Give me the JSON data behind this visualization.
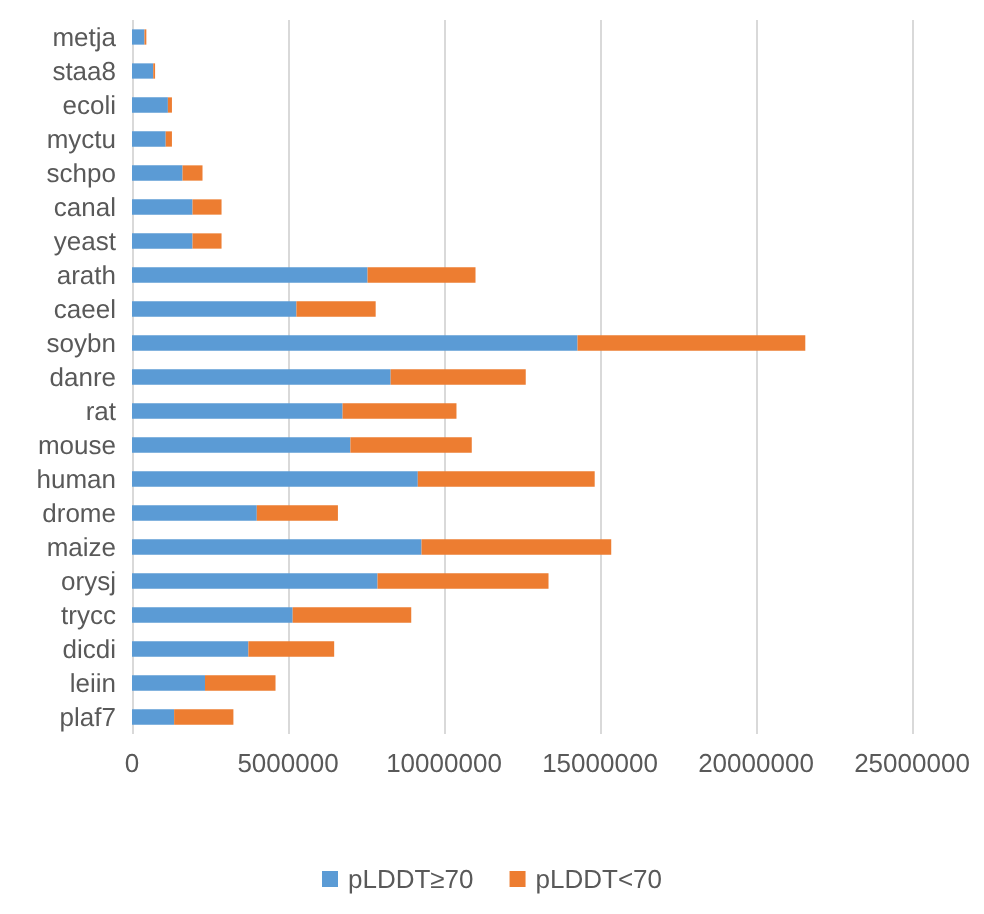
{
  "chart_data": {
    "type": "bar",
    "orientation": "horizontal",
    "stacked": true,
    "categories": [
      "metja",
      "staa8",
      "ecoli",
      "myctu",
      "schpo",
      "canal",
      "yeast",
      "arath",
      "caeel",
      "soybn",
      "danre",
      "rat",
      "mouse",
      "human",
      "drome",
      "maize",
      "orysj",
      "trycc",
      "dicdi",
      "leiin",
      "plaf7"
    ],
    "series": [
      {
        "name": "pLDDT≥70",
        "color": "#5b9bd5",
        "values": [
          400000,
          680000,
          1150000,
          1080000,
          1620000,
          1940000,
          1940000,
          7550000,
          5270000,
          14280000,
          8290000,
          6750000,
          7000000,
          9160000,
          4000000,
          9280000,
          7870000,
          5150000,
          3730000,
          2340000,
          1350000
        ]
      },
      {
        "name": "pLDDT<70",
        "color": "#ed7d31",
        "values": [
          60000,
          60000,
          130000,
          200000,
          640000,
          930000,
          930000,
          3460000,
          2540000,
          7300000,
          4330000,
          3650000,
          3890000,
          5670000,
          2600000,
          6080000,
          5480000,
          3800000,
          2750000,
          2260000,
          1900000
        ]
      }
    ],
    "xlim": [
      0,
      25000000
    ],
    "xticks": [
      0,
      5000000,
      10000000,
      15000000,
      20000000,
      25000000
    ],
    "grid": "x",
    "legend": "bottom"
  }
}
